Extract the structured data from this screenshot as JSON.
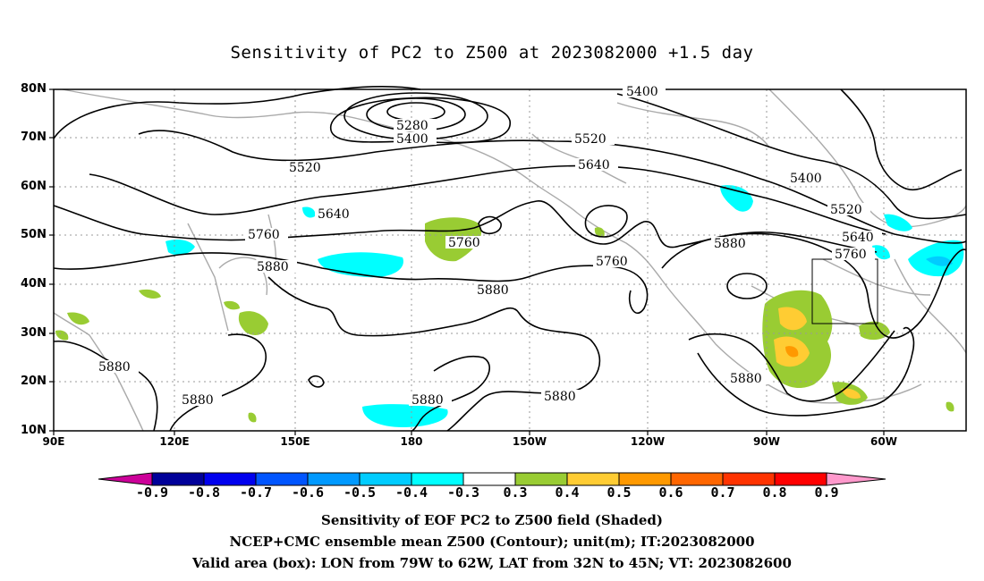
{
  "title": "Sensitivity of PC2 to Z500 at 2023082000 +1.5 day",
  "lat_labels": [
    "80N",
    "70N",
    "60N",
    "50N",
    "40N",
    "30N",
    "20N",
    "10N"
  ],
  "lon_labels": [
    "90E",
    "120E",
    "150E",
    "180",
    "150W",
    "120W",
    "90W",
    "60W"
  ],
  "contour_labels": [
    "5400",
    "5280",
    "5400",
    "5520",
    "5520",
    "5640",
    "5400",
    "5520",
    "5640",
    "5760",
    "5640",
    "5760",
    "5880",
    "5760",
    "5760",
    "5880",
    "5880",
    "5880",
    "5880",
    "5880",
    "5880",
    "5880"
  ],
  "colorbar": {
    "labels": [
      "-0.9",
      "-0.8",
      "-0.7",
      "-0.6",
      "-0.5",
      "-0.4",
      "-0.3",
      "0.3",
      "0.4",
      "0.5",
      "0.6",
      "0.7",
      "0.8",
      "0.9"
    ],
    "colors": [
      "#000099",
      "#0000ee",
      "#0055ff",
      "#0099ff",
      "#00ccff",
      "#00ffff",
      "#ffffff",
      "#99cc33",
      "#ffcc33",
      "#ff9900",
      "#ff6600",
      "#ff3300",
      "#ff0000"
    ],
    "low_end_color": "#cc0099",
    "high_end_color": "#ff99cc"
  },
  "captions": [
    "Sensitivity of EOF PC2 to Z500 field (Shaded)",
    "NCEP+CMC ensemble mean Z500 (Contour); unit(m); IT:2023082000",
    "Valid area (box): LON from 79W to 62W, LAT from 32N to 45N; VT: 2023082600"
  ],
  "colors": {
    "coastline": "#aaaaaa",
    "contour": "#000000",
    "grid": "#999999"
  }
}
